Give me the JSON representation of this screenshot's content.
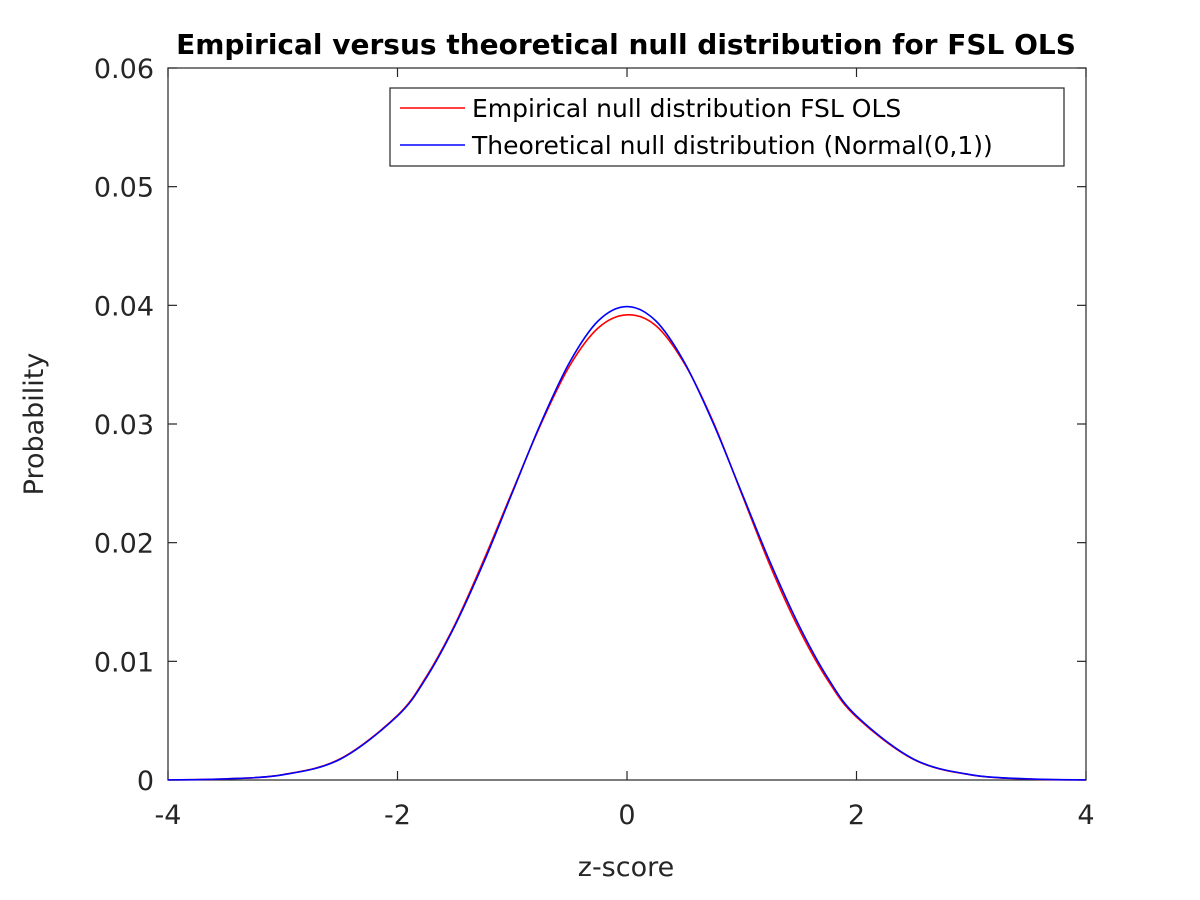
{
  "chart_data": {
    "type": "line",
    "title": "Empirical versus theoretical null distribution for FSL OLS",
    "xlabel": "z-score",
    "ylabel": "Probability",
    "xlim": [
      -4,
      4
    ],
    "ylim": [
      0,
      0.06
    ],
    "xticks": [
      "-4",
      "-2",
      "0",
      "2",
      "4"
    ],
    "yticks": [
      "0",
      "0.01",
      "0.02",
      "0.03",
      "0.04",
      "0.05",
      "0.06"
    ],
    "grid": false,
    "legend_position": "top-right",
    "series": [
      {
        "name": "Empirical null distribution FSL OLS",
        "color": "#ff0000",
        "x": [
          -4,
          -3.5,
          -3,
          -2.5,
          -2,
          -1.75,
          -1.5,
          -1.25,
          -1,
          -0.75,
          -0.5,
          -0.25,
          0,
          0.25,
          0.5,
          0.75,
          1,
          1.25,
          1.5,
          1.75,
          2,
          2.5,
          3,
          3.5,
          4
        ],
        "y": [
          1e-05,
          9e-05,
          0.00045,
          0.00178,
          0.00545,
          0.0087,
          0.0131,
          0.0185,
          0.0243,
          0.03,
          0.0349,
          0.0381,
          0.0392,
          0.0383,
          0.0351,
          0.0302,
          0.0241,
          0.018,
          0.0127,
          0.0084,
          0.0053,
          0.00172,
          0.00043,
          8e-05,
          1e-05
        ]
      },
      {
        "name": "Theoretical null distribution (Normal(0,1))",
        "color": "#0000ff",
        "x": [
          -4,
          -3.5,
          -3,
          -2.5,
          -2,
          -1.75,
          -1.5,
          -1.25,
          -1,
          -0.75,
          -0.5,
          -0.25,
          0,
          0.25,
          0.5,
          0.75,
          1,
          1.25,
          1.5,
          1.75,
          2,
          2.5,
          3,
          3.5,
          4
        ],
        "y": [
          1e-05,
          9e-05,
          0.00044,
          0.00175,
          0.0054,
          0.0086,
          0.013,
          0.0183,
          0.0242,
          0.0301,
          0.0352,
          0.0387,
          0.0399,
          0.0387,
          0.0352,
          0.0301,
          0.0242,
          0.0183,
          0.013,
          0.0086,
          0.0054,
          0.00175,
          0.00044,
          9e-05,
          1e-05
        ]
      }
    ]
  }
}
